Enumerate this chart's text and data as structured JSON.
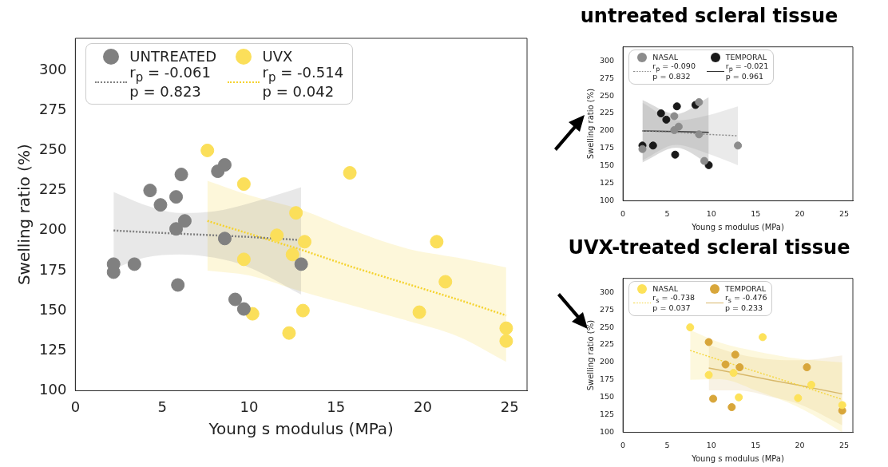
{
  "chart_data": [
    {
      "type": "scatter",
      "xlabel": "Young s modulus (MPa)",
      "ylabel": "Swelling ratio (%)",
      "xlim": [
        0,
        26
      ],
      "ylim": [
        100,
        320
      ],
      "xticks": [
        0,
        5,
        10,
        15,
        20,
        25
      ],
      "yticks": [
        100,
        125,
        150,
        175,
        200,
        225,
        250,
        275,
        300
      ],
      "grid": false,
      "legend": "top left",
      "marker": "circle",
      "series": [
        {
          "name": "UNTREATED",
          "color": "#808080",
          "x": [
            2.2,
            2.2,
            3.4,
            4.3,
            4.9,
            5.8,
            6.1,
            6.3,
            5.8,
            5.9,
            8.2,
            8.6,
            8.6,
            9.2,
            9.7,
            13.0
          ],
          "values": [
            179,
            174,
            179,
            225,
            216,
            221,
            235,
            206,
            201,
            166,
            237,
            241,
            195,
            157,
            151,
            179
          ]
        },
        {
          "name": "r$_{p}$ = -0.061\np = 0.823",
          "type": "line",
          "marker": "none",
          "line_style": "dotted",
          "color": "#808080",
          "x": [
            2.2,
            4,
            6,
            8,
            10,
            13.0
          ],
          "values": [
            200,
            199,
            198,
            197,
            196,
            194
          ],
          "upper": [
            224,
            216,
            211,
            212,
            217,
            227
          ],
          "lower": [
            176,
            183,
            185,
            183,
            177,
            160
          ]
        },
        {
          "name": "UVX",
          "color": "#fbdf5a",
          "x": [
            7.6,
            9.7,
            9.7,
            10.2,
            11.6,
            12.3,
            12.7,
            12.5,
            13.2,
            13.1,
            15.8,
            20.8,
            21.3,
            19.8,
            24.8,
            24.8
          ],
          "values": [
            250,
            229,
            182,
            148,
            197,
            136,
            211,
            185,
            193,
            150,
            236,
            193,
            168,
            149,
            139,
            131
          ]
        },
        {
          "name": "r$_{p}$ = -0.514\np = 0.042",
          "type": "line",
          "marker": "none",
          "line_style": "dotted",
          "color": "#f5d330",
          "x": [
            7.6,
            10,
            13,
            16,
            19,
            22,
            24.8
          ],
          "values": [
            206,
            198,
            188,
            177,
            167,
            157,
            147
          ],
          "upper": [
            231,
            222,
            213,
            200,
            189,
            183,
            177
          ],
          "lower": [
            175,
            172,
            162,
            153,
            144,
            134,
            118
          ]
        }
      ]
    },
    {
      "type": "scatter",
      "title": "untreated scleral tissue",
      "xlabel": "Young s modulus (MPa)",
      "ylabel": "Swelling ratio (%)",
      "xlim": [
        0,
        26
      ],
      "ylim": [
        100,
        320
      ],
      "xticks": [
        0,
        5,
        10,
        15,
        20,
        25
      ],
      "yticks": [
        100,
        125,
        150,
        175,
        200,
        225,
        250,
        275,
        300
      ],
      "grid": false,
      "legend": "top left",
      "marker": "circle",
      "series": [
        {
          "name": "NASAL",
          "color": "#8c8c8c",
          "x": [
            2.2,
            5.8,
            5.8,
            6.3,
            8.6,
            8.6,
            9.2,
            13.0
          ],
          "values": [
            174,
            221,
            201,
            206,
            241,
            195,
            157,
            179
          ]
        },
        {
          "name": "r$_{p}$ = -0.090\np = 0.832",
          "type": "line",
          "marker": "none",
          "line_style": "dotted",
          "color": "#8c8c8c",
          "x": [
            2.2,
            6,
            9.5,
            13.0
          ],
          "values": [
            200,
            198,
            195,
            193
          ],
          "upper": [
            240,
            215,
            222,
            235
          ],
          "lower": [
            158,
            180,
            168,
            151
          ]
        },
        {
          "name": "TEMPORAL",
          "color": "#1a1a1a",
          "x": [
            2.2,
            3.4,
            4.3,
            4.9,
            6.1,
            5.9,
            8.2,
            9.7
          ],
          "values": [
            179,
            179,
            225,
            216,
            235,
            166,
            237,
            151
          ]
        },
        {
          "name": "r$_{p}$ = -0.021\np = 0.961",
          "type": "line",
          "marker": "none",
          "line_style": "solid",
          "color": "#333333",
          "x": [
            2.2,
            6,
            9.7
          ],
          "values": [
            200,
            199,
            198
          ],
          "upper": [
            244,
            224,
            248
          ],
          "lower": [
            155,
            176,
            153
          ]
        }
      ]
    },
    {
      "type": "scatter",
      "title": "UVX-treated scleral tissue",
      "xlabel": "Young s modulus (MPa)",
      "ylabel": "Swelling ratio (%)",
      "xlim": [
        0,
        26
      ],
      "ylim": [
        100,
        320
      ],
      "xticks": [
        0,
        5,
        10,
        15,
        20,
        25
      ],
      "yticks": [
        100,
        125,
        150,
        175,
        200,
        225,
        250,
        275,
        300
      ],
      "grid": false,
      "legend": "top left",
      "marker": "circle",
      "series": [
        {
          "name": "NASAL",
          "color": "#fde25a",
          "x": [
            7.6,
            9.7,
            12.5,
            13.1,
            15.8,
            21.3,
            19.8,
            24.8
          ],
          "values": [
            250,
            182,
            185,
            150,
            236,
            168,
            149,
            139
          ]
        },
        {
          "name": "r$_{s}$ = -0.738\np = 0.037",
          "type": "line",
          "marker": "none",
          "line_style": "dotted",
          "color": "#f5d742",
          "x": [
            7.6,
            11,
            15,
            20,
            24.8
          ],
          "values": [
            217,
            203,
            187,
            167,
            147
          ],
          "upper": [
            246,
            228,
            216,
            205,
            200
          ],
          "lower": [
            175,
            176,
            160,
            135,
            100
          ]
        },
        {
          "name": "TEMPORAL",
          "color": "#d8a63a",
          "x": [
            9.7,
            10.2,
            11.6,
            12.3,
            12.7,
            13.2,
            20.8,
            24.8
          ],
          "values": [
            229,
            148,
            197,
            136,
            211,
            193,
            193,
            131
          ]
        },
        {
          "name": "r$_{s}$ = -0.476\np = 0.233",
          "type": "line",
          "marker": "none",
          "line_style": "solid",
          "color": "#d8b86a",
          "x": [
            9.7,
            13,
            17,
            20,
            24.8
          ],
          "values": [
            192,
            184,
            174,
            167,
            155
          ],
          "upper": [
            225,
            212,
            204,
            203,
            210
          ],
          "lower": [
            160,
            160,
            150,
            140,
            110
          ]
        }
      ]
    }
  ]
}
